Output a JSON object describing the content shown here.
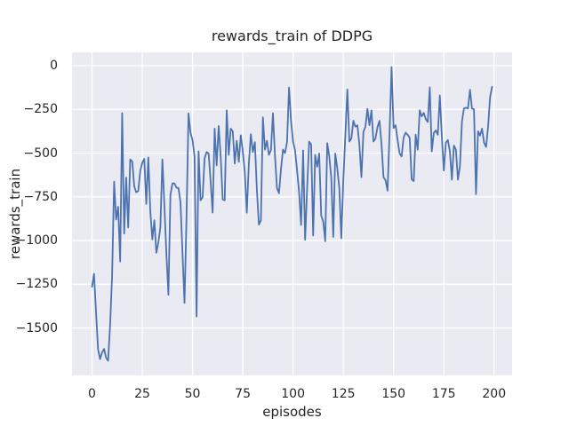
{
  "figure": {
    "title": "rewards_train of DDPG",
    "xlabel": "episodes",
    "ylabel": "rewards_train"
  },
  "chart_data": {
    "type": "line",
    "title": "rewards_train of DDPG",
    "xlabel": "episodes",
    "ylabel": "rewards_train",
    "grid": true,
    "legend": null,
    "xlim": [
      -9.95,
      208.95
    ],
    "ylim": [
      -1771,
      76
    ],
    "xticks": {
      "values": [
        0,
        25,
        50,
        75,
        100,
        125,
        150,
        175,
        200
      ],
      "labels": [
        "0",
        "25",
        "50",
        "75",
        "100",
        "125",
        "150",
        "175",
        "200"
      ]
    },
    "yticks": {
      "values": [
        0,
        -250,
        -500,
        -750,
        -1000,
        -1250,
        -1500
      ],
      "labels": [
        "0",
        "−250",
        "−500",
        "−750",
        "−1000",
        "−1250",
        "−1500"
      ]
    },
    "style": {
      "fig_bg": "#ffffff",
      "axes_bg": "#eaeaf2",
      "grid_color": "#ffffff",
      "text_color": "#262626",
      "line_color": "#4c72b0",
      "line_width": 1.8
    },
    "series": [
      {
        "name": "rewards_train",
        "color": "#4c72b0",
        "x_start": 0,
        "x_step": 1,
        "values": [
          -1264,
          -1190,
          -1410,
          -1620,
          -1678,
          -1640,
          -1619,
          -1670,
          -1687,
          -1483,
          -1197,
          -663,
          -880,
          -807,
          -1120,
          -271,
          -960,
          -640,
          -926,
          -536,
          -547,
          -690,
          -724,
          -716,
          -601,
          -555,
          -533,
          -791,
          -525,
          -833,
          -994,
          -884,
          -1070,
          -1010,
          -925,
          -536,
          -800,
          -1078,
          -1310,
          -740,
          -673,
          -673,
          -698,
          -700,
          -780,
          -1070,
          -1357,
          -870,
          -273,
          -384,
          -426,
          -520,
          -1434,
          -490,
          -770,
          -753,
          -530,
          -494,
          -502,
          -663,
          -840,
          -360,
          -570,
          -345,
          -520,
          -765,
          -770,
          -255,
          -510,
          -360,
          -375,
          -560,
          -430,
          -550,
          -398,
          -490,
          -612,
          -841,
          -560,
          -392,
          -494,
          -437,
          -710,
          -909,
          -885,
          -295,
          -480,
          -430,
          -510,
          -483,
          -272,
          -515,
          -700,
          -730,
          -590,
          -480,
          -500,
          -437,
          -125,
          -316,
          -434,
          -485,
          -600,
          -723,
          -911,
          -485,
          -996,
          -700,
          -434,
          -451,
          -971,
          -510,
          -578,
          -502,
          -857,
          -891,
          -1004,
          -443,
          -519,
          -638,
          -979,
          -502,
          -587,
          -700,
          -987,
          -655,
          -400,
          -136,
          -434,
          -417,
          -315,
          -349,
          -341,
          -451,
          -638,
          -378,
          -349,
          -247,
          -341,
          -256,
          -434,
          -417,
          -350,
          -315,
          -451,
          -638,
          -655,
          -715,
          -383,
          -8,
          -357,
          -341,
          -426,
          -502,
          -519,
          -409,
          -383,
          -395,
          -412,
          -650,
          -660,
          -395,
          -480,
          -255,
          -290,
          -270,
          -305,
          -322,
          -124,
          -490,
          -385,
          -370,
          -395,
          -170,
          -405,
          -600,
          -440,
          -425,
          -490,
          -652,
          -457,
          -480,
          -652,
          -575,
          -320,
          -245,
          -240,
          -245,
          -138,
          -245,
          -250,
          -735,
          -375,
          -400,
          -360,
          -440,
          -465,
          -350,
          -180,
          -121
        ]
      }
    ]
  }
}
